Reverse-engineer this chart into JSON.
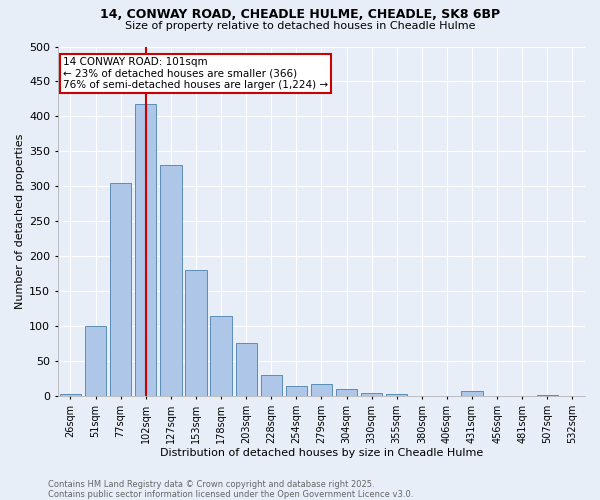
{
  "title": "14, CONWAY ROAD, CHEADLE HULME, CHEADLE, SK8 6BP",
  "subtitle": "Size of property relative to detached houses in Cheadle Hulme",
  "xlabel": "Distribution of detached houses by size in Cheadle Hulme",
  "ylabel": "Number of detached properties",
  "categories": [
    "26sqm",
    "51sqm",
    "77sqm",
    "102sqm",
    "127sqm",
    "153sqm",
    "178sqm",
    "203sqm",
    "228sqm",
    "254sqm",
    "279sqm",
    "304sqm",
    "330sqm",
    "355sqm",
    "380sqm",
    "406sqm",
    "431sqm",
    "456sqm",
    "481sqm",
    "507sqm",
    "532sqm"
  ],
  "values": [
    3,
    101,
    305,
    418,
    330,
    181,
    115,
    76,
    30,
    15,
    17,
    11,
    5,
    3,
    1,
    1,
    7,
    1,
    1,
    2,
    1
  ],
  "bar_color": "#aec6e8",
  "bar_edge_color": "#5b8db8",
  "background_color": "#e8eef8",
  "vline_x_idx": 3,
  "vline_color": "#cc0000",
  "annotation_line1": "14 CONWAY ROAD: 101sqm",
  "annotation_line2": "← 23% of detached houses are smaller (366)",
  "annotation_line3": "76% of semi-detached houses are larger (1,224) →",
  "annotation_box_color": "#ffffff",
  "annotation_box_edge": "#cc0000",
  "ylim": [
    0,
    500
  ],
  "yticks": [
    0,
    50,
    100,
    150,
    200,
    250,
    300,
    350,
    400,
    450,
    500
  ],
  "footer_line1": "Contains HM Land Registry data © Crown copyright and database right 2025.",
  "footer_line2": "Contains public sector information licensed under the Open Government Licence v3.0.",
  "title_fontsize": 9,
  "subtitle_fontsize": 8,
  "xlabel_fontsize": 8,
  "ylabel_fontsize": 8,
  "xtick_fontsize": 7,
  "ytick_fontsize": 8,
  "footer_fontsize": 6,
  "annotation_fontsize": 7.5
}
